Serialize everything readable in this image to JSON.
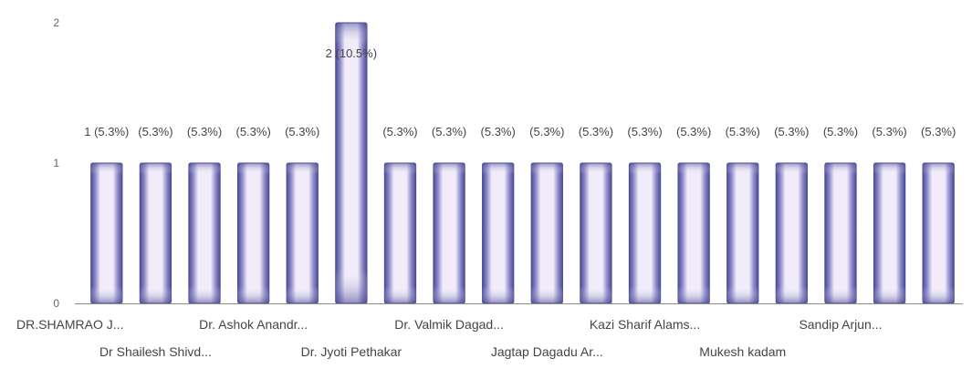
{
  "chart_data": {
    "type": "bar",
    "title": "",
    "xlabel": "",
    "ylabel": "",
    "ylim": [
      0,
      2
    ],
    "yticks": [
      "0",
      "1",
      "2"
    ],
    "grid": false,
    "legend": "none",
    "categories": [
      "DR.SHAMRAO J...",
      "Dr Shailesh Shivd...",
      "",
      "Dr. Ashok Anandr...",
      "",
      "Dr. Jyoti Pethakar",
      "",
      "Dr. Valmik Dagad...",
      "",
      "Jagtap Dagadu Ar...",
      "",
      "Kazi Sharif Alams...",
      "",
      "Mukesh kadam",
      "",
      "Sandip Arjun...",
      "",
      ""
    ],
    "category_label_rows": [
      0,
      1,
      0,
      0,
      0,
      1,
      0,
      0,
      0,
      1,
      0,
      0,
      0,
      1,
      0,
      0,
      0,
      0
    ],
    "values": [
      1,
      1,
      1,
      1,
      1,
      2,
      1,
      1,
      1,
      1,
      1,
      1,
      1,
      1,
      1,
      1,
      1,
      1
    ],
    "data_labels": [
      "1 (5.3%)",
      "(5.3%)",
      "(5.3%)",
      "(5.3%)",
      "(5.3%)",
      "2 (10.5%)",
      "(5.3%)",
      "(5.3%)",
      "(5.3%)",
      "(5.3%)",
      "(5.3%)",
      "(5.3%)",
      "(5.3%)",
      "(5.3%)",
      "(5.3%)",
      "(5.3%)",
      "(5.3%)",
      "(5.3%)"
    ],
    "colors": {
      "bar_edge": "#4b4b96",
      "bar_mid": "#8c88c8",
      "bar_center": "#f2ecfa",
      "axis": "#8a8a8a",
      "tick_text": "#666666",
      "label_text": "#444444"
    }
  }
}
